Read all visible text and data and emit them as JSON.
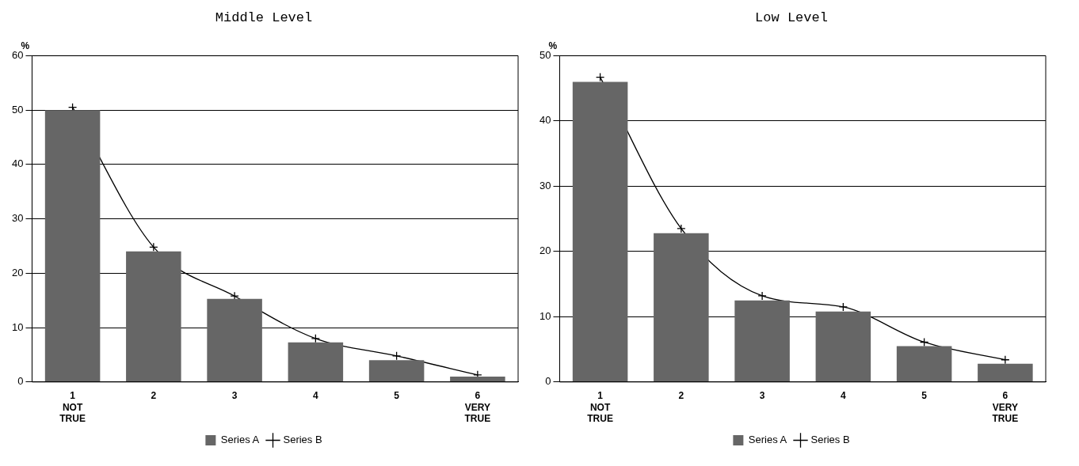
{
  "chart_data": [
    {
      "type": "bar",
      "title": "Middle Level",
      "ylabel": "%",
      "categories": [
        "1\nNOT\nTRUE",
        "2",
        "3",
        "4",
        "5",
        "6\nVERY\nTRUE"
      ],
      "series": [
        {
          "name": "Series A",
          "color": "#666666",
          "values": [
            50,
            24,
            15.3,
            7.3,
            4,
            1
          ]
        },
        {
          "name": "Series B",
          "type": "line",
          "color": "#000000",
          "values": [
            50.5,
            24.8,
            15.8,
            8,
            4.8,
            1.3
          ]
        }
      ],
      "ylim": [
        0,
        60
      ],
      "yticks": [
        0,
        10,
        20,
        30,
        40,
        50,
        60
      ],
      "grid": "y",
      "legend": "bottom",
      "marker": "cross"
    },
    {
      "type": "bar",
      "title": "Low Level",
      "ylabel": "%",
      "categories": [
        "1\nNOT\nTRUE",
        "2",
        "3",
        "4",
        "5",
        "6\nVERY\nTRUE"
      ],
      "series": [
        {
          "name": "Series A",
          "color": "#666666",
          "values": [
            46,
            22.8,
            12.5,
            10.8,
            5.5,
            2.8
          ]
        },
        {
          "name": "Series B",
          "type": "line",
          "color": "#000000",
          "values": [
            46.7,
            23.5,
            13.2,
            11.5,
            6.1,
            3.4
          ]
        }
      ],
      "ylim": [
        0,
        50
      ],
      "yticks": [
        0,
        10,
        20,
        30,
        40,
        50
      ],
      "grid": "y",
      "legend": "bottom",
      "marker": "cross"
    }
  ]
}
